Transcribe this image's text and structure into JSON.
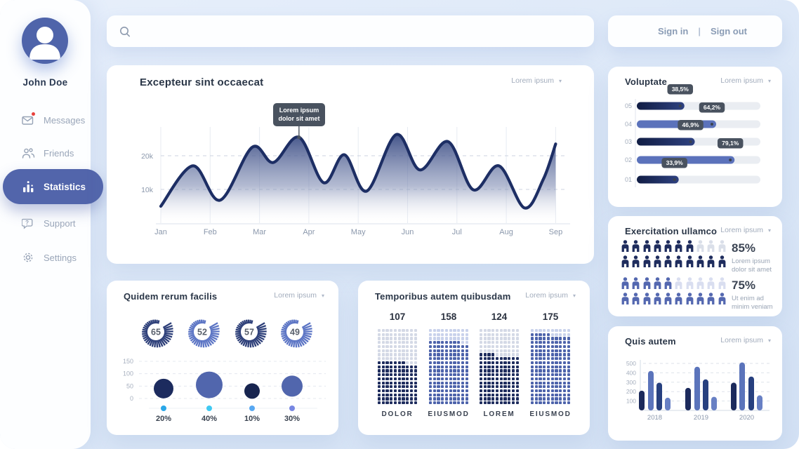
{
  "sidebar": {
    "user_name": "John Doe",
    "items": [
      {
        "label": "Messages",
        "icon": "envelope-icon",
        "active": false,
        "notification": true
      },
      {
        "label": "Friends",
        "icon": "friends-icon",
        "active": false,
        "notification": false
      },
      {
        "label": "Statistics",
        "icon": "bar-chart-icon",
        "active": true,
        "notification": false
      },
      {
        "label": "Support",
        "icon": "support-icon",
        "active": false,
        "notification": false
      },
      {
        "label": "Settings",
        "icon": "gear-icon",
        "active": false,
        "notification": false
      }
    ]
  },
  "topbar": {
    "signin": "Sign in",
    "divider": "|",
    "signout": "Sign out"
  },
  "cards": {
    "main": {
      "title": "Excepteur sint occaecat",
      "menu": "Lorem ipsum"
    },
    "quidem": {
      "title": "Quidem rerum facilis",
      "menu": "Lorem ipsum"
    },
    "temporibus": {
      "title": "Temporibus autem quibusdam",
      "menu": "Lorem ipsum"
    },
    "voluptate": {
      "title": "Voluptate",
      "menu": "Lorem ipsum"
    },
    "exercitation": {
      "title": "Exercitation ullamco",
      "menu": "Lorem ipsum"
    },
    "quis": {
      "title": "Quis autem",
      "menu": "Lorem ipsum"
    }
  },
  "colors": {
    "dark_navy": "#1e2c5e",
    "line_navy": "#1d2e64",
    "slate_blue": "#5b72bb",
    "slate_blue2": "#5166ad",
    "accent_pill": "#5265ab",
    "badge_bg": "#49525f",
    "empty_dark": "#d4d9e6",
    "empty_slate": "#c9d2ec",
    "track_gray": "#eaedf2"
  },
  "chart_data": [
    {
      "id": "main-area",
      "type": "area",
      "title": "Excepteur sint occaecat",
      "x_labels": [
        "Jan",
        "Feb",
        "Mar",
        "Apr",
        "May",
        "Jun",
        "Jul",
        "Aug",
        "Sep"
      ],
      "y_ticks": [
        {
          "value": 10,
          "label": "10k"
        },
        {
          "value": 20,
          "label": "20k"
        }
      ],
      "ylim": [
        0,
        29
      ],
      "grid": "dashed-horizontal",
      "points": [
        [
          0,
          5
        ],
        [
          0.65,
          17
        ],
        [
          1.2,
          6.8
        ],
        [
          1.85,
          22.5
        ],
        [
          2.28,
          18
        ],
        [
          2.8,
          25.5
        ],
        [
          3.3,
          12
        ],
        [
          3.72,
          20.3
        ],
        [
          4.17,
          9.5
        ],
        [
          4.77,
          26.3
        ],
        [
          5.25,
          15.8
        ],
        [
          5.82,
          24.2
        ],
        [
          6.33,
          9.9
        ],
        [
          6.85,
          17
        ],
        [
          7.37,
          4.5
        ],
        [
          7.75,
          13
        ],
        [
          8,
          23.5
        ]
      ],
      "tooltip": {
        "lines": [
          "Lorem ipsum",
          "dolor sit amet"
        ],
        "month": 2.8,
        "value": 25.5
      }
    },
    {
      "id": "gauges",
      "type": "gauge-set",
      "values": [
        65,
        52,
        57,
        49
      ],
      "colors": [
        "#2c3e78",
        "#5b74c4",
        "#2c3e78",
        "#5b74c4"
      ]
    },
    {
      "id": "bubbles",
      "type": "bubble",
      "categories": [
        "20%",
        "40%",
        "10%",
        "30%"
      ],
      "y_ticks": [
        0,
        50,
        100,
        150
      ],
      "ylim": [
        0,
        150
      ],
      "grid": "dashed-horizontal",
      "bubbles": [
        {
          "label": "20%",
          "value": 40,
          "radius": 14,
          "color": "#1c2b5e",
          "dot_color": "#2aa7e8"
        },
        {
          "label": "40%",
          "value": 55,
          "radius": 19,
          "color": "#5166ad",
          "dot_color": "#3fc9f2"
        },
        {
          "label": "10%",
          "value": 30,
          "radius": 11,
          "color": "#17244f",
          "dot_color": "#58a8f2"
        },
        {
          "label": "30%",
          "value": 50,
          "radius": 15,
          "color": "#5166ad",
          "dot_color": "#7787e2"
        }
      ]
    },
    {
      "id": "dot-matrix",
      "type": "pictograph-grid",
      "grid": {
        "cols": 10,
        "rows": 19
      },
      "columns": [
        {
          "value": 107,
          "label": "DOLOR",
          "color": "#1f2d5e",
          "empty_color": "#d4d9e6"
        },
        {
          "value": 158,
          "label": "EIUSMOD",
          "color": "#4d63ab",
          "empty_color": "#c9d2ec"
        },
        {
          "value": 124,
          "label": "LOREM",
          "color": "#1f2d5e",
          "empty_color": "#d4d9e6"
        },
        {
          "value": 175,
          "label": "EIUSMOD",
          "color": "#4d63ab",
          "empty_color": "#c9d2ec"
        }
      ]
    },
    {
      "id": "voluptate-bars",
      "type": "bar-horizontal",
      "categories": [
        "05",
        "04",
        "03",
        "02",
        "01"
      ],
      "values": [
        38.5,
        64.2,
        46.9,
        79.1,
        33.9
      ],
      "value_labels": [
        "38,5%",
        "64,2%",
        "46,9%",
        "79,1%",
        "33,9%"
      ],
      "colors": [
        "dark",
        "#5b72bb",
        "dark",
        "#5b72bb",
        "dark"
      ],
      "xlim": [
        0,
        100
      ]
    },
    {
      "id": "people",
      "type": "pictograph",
      "groups": [
        {
          "percent": "85%",
          "filled": 17,
          "total": 20,
          "rows": [
            7,
            10
          ],
          "per_row": 10,
          "color": "#1f2d5e",
          "empty_color": "#dadfe9",
          "caption": [
            "Lorem ipsum",
            "dolor sit amet"
          ]
        },
        {
          "percent": "75%",
          "filled": 15,
          "total": 20,
          "rows": [
            5,
            10
          ],
          "per_row": 10,
          "color": "#5468b0",
          "empty_color": "#d9def0",
          "caption": [
            "Ut enim ad",
            "minim veniam"
          ]
        }
      ]
    },
    {
      "id": "quis-bars",
      "type": "bar-grouped",
      "categories": [
        "2018",
        "2019",
        "2020"
      ],
      "y_ticks": [
        100,
        200,
        300,
        400,
        500
      ],
      "ylim": [
        0,
        520
      ],
      "grid": "dashed-horizontal",
      "series_values": [
        [
          210,
          420,
          295,
          135
        ],
        [
          240,
          465,
          330,
          145
        ],
        [
          295,
          510,
          360,
          160
        ]
      ],
      "bar_colors": [
        "#1c2a5c",
        "#5b74bb",
        "#27407f",
        "#6880c4"
      ]
    }
  ]
}
